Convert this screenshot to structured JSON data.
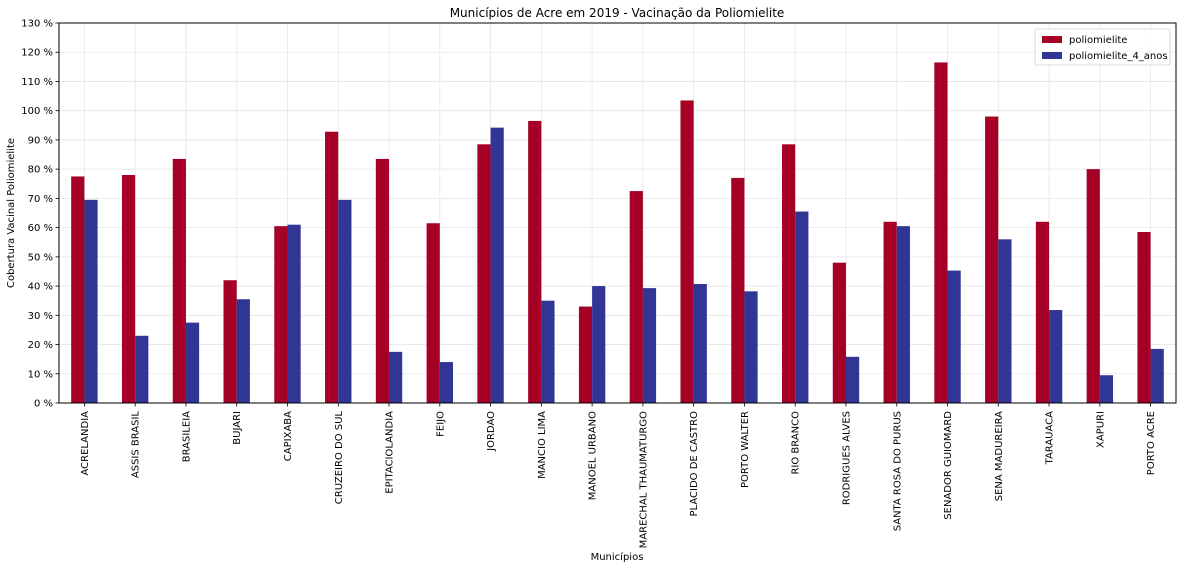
{
  "chart_data": {
    "type": "bar",
    "title": "Municípios de Acre em 2019 - Vacinação da Poliomielite",
    "xlabel": "Municípios",
    "ylabel": "Cobertura Vacinal Poliomielite",
    "ylim": [
      0,
      130
    ],
    "y_tick_step": 10,
    "y_tick_suffix": " %",
    "grid": true,
    "legend_position": "top-right",
    "categories": [
      "ACRELANDIA",
      "ASSIS BRASIL",
      "BRASILEIA",
      "BUJARI",
      "CAPIXABA",
      "CRUZEIRO DO SUL",
      "EPITACIOLANDIA",
      "FEIJO",
      "JORDAO",
      "MANCIO LIMA",
      "MANOEL URBANO",
      "MARECHAL THAUMATURGO",
      "PLACIDO DE CASTRO",
      "PORTO WALTER",
      "RIO BRANCO",
      "RODRIGUES ALVES",
      "SANTA ROSA DO PURUS",
      "SENADOR GUIOMARD",
      "SENA MADUREIRA",
      "TARAUACA",
      "XAPURI",
      "PORTO ACRE"
    ],
    "series": [
      {
        "name": "poliomielite",
        "color": "#a50026",
        "values": [
          77.5,
          78,
          83.5,
          42,
          60.5,
          92.8,
          83.5,
          61.5,
          88.5,
          96.5,
          33,
          72.5,
          103.5,
          77,
          88.5,
          48,
          62,
          116.5,
          98,
          62,
          80,
          58.5
        ]
      },
      {
        "name": "poliomielite_4_anos",
        "color": "#313695",
        "values": [
          69.5,
          23,
          27.5,
          35.5,
          61,
          69.5,
          17.5,
          14,
          94.2,
          35,
          40,
          39.3,
          40.7,
          38.2,
          65.5,
          15.8,
          60.5,
          45.3,
          56,
          31.8,
          9.5,
          18.5
        ]
      }
    ]
  }
}
